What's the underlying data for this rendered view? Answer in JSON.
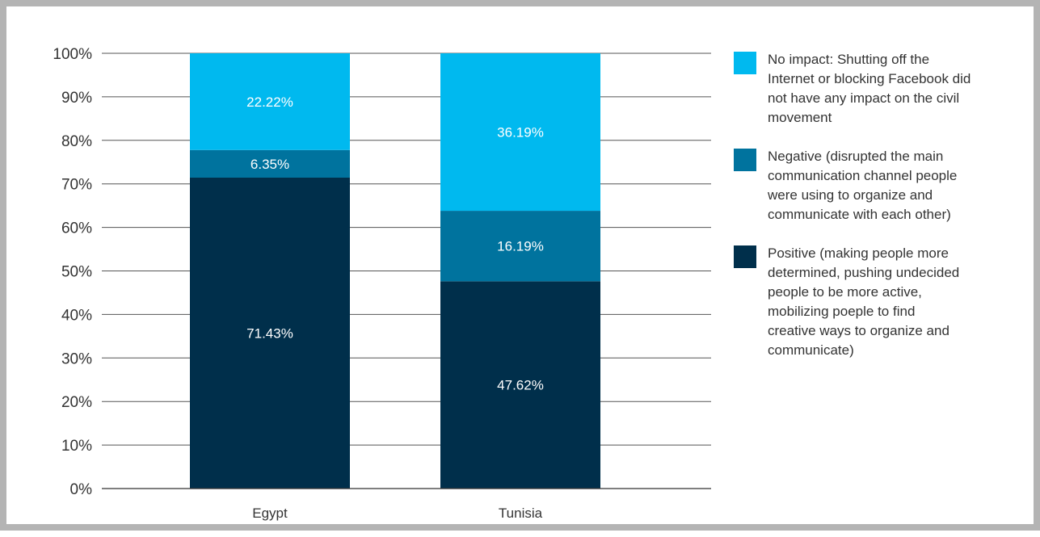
{
  "chart_data": {
    "type": "bar",
    "stacked": true,
    "categories": [
      "Egypt",
      "Tunisia"
    ],
    "series": [
      {
        "name": "Positive (making people more determined, pushing undecided people to be more active, mobilizing poeple to find creative ways to organize and communicate)",
        "values": [
          71.43,
          47.62
        ],
        "labels": [
          "71.43%",
          "47.62%"
        ],
        "color": "#002f4b"
      },
      {
        "name": "Negative (disrupted the main communication channel people were using to organize and communicate with each other)",
        "values": [
          6.35,
          16.19
        ],
        "labels": [
          "6.35%",
          "16.19%"
        ],
        "color": "#00739e"
      },
      {
        "name": "No impact: Shutting off the Internet or blocking Facebook did not have any impact on the civil movement",
        "values": [
          22.22,
          36.19
        ],
        "labels": [
          "22.22%",
          "36.19%"
        ],
        "color": "#00b9ef"
      }
    ],
    "yticks": [
      "0%",
      "10%",
      "20%",
      "30%",
      "40%",
      "50%",
      "60%",
      "70%",
      "80%",
      "90%",
      "100%"
    ],
    "ylim": [
      0,
      100
    ],
    "grid": true,
    "legend_position": "right"
  },
  "legend": {
    "items": [
      {
        "text": "No impact: Shutting off the\nInternet or blocking Facebook did\nnot have any impact on the civil\nmovement",
        "color": "#00b9ef"
      },
      {
        "text": "Negative (disrupted the main\ncommunication channel people\nwere using to organize and\ncommunicate with each other)",
        "color": "#00739e"
      },
      {
        "text": "Positive (making people more\ndetermined, pushing undecided\npeople to be more active,\nmobilizing poeple to find\ncreative ways to organize and\ncommunicate)",
        "color": "#002f4b"
      }
    ]
  }
}
